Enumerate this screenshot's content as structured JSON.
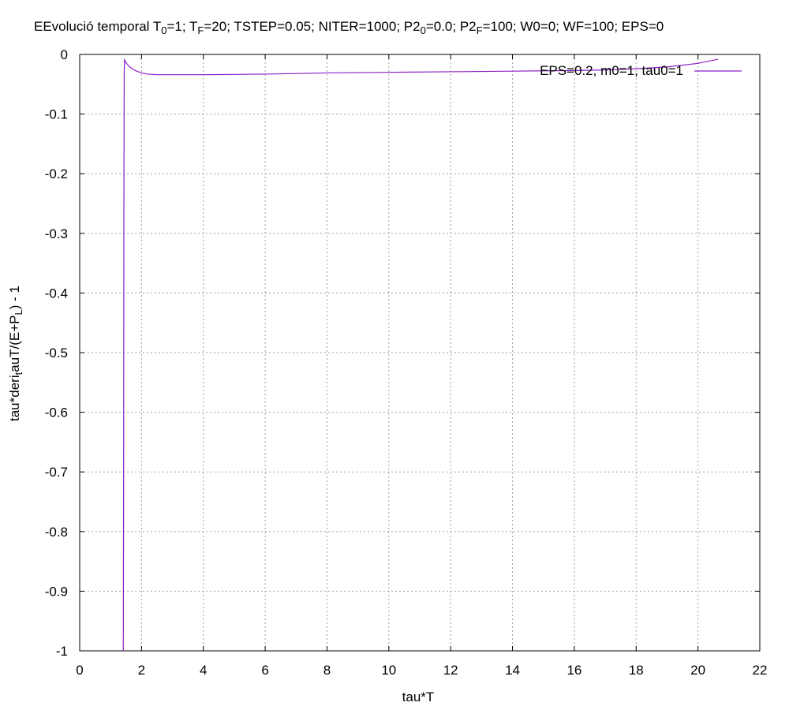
{
  "chart_data": {
    "type": "line",
    "title": {
      "parts": [
        {
          "t": "EEvolució temporal T"
        },
        {
          "t": "0",
          "sub": true
        },
        {
          "t": "=1; T"
        },
        {
          "t": "F",
          "sub": true
        },
        {
          "t": "=20; TSTEP=0.05; NITER=1000; P2"
        },
        {
          "t": "0",
          "sub": true
        },
        {
          "t": "=0.0; P2"
        },
        {
          "t": "F",
          "sub": true
        },
        {
          "t": "=100; W0=0; WF=100; EPS=0"
        }
      ]
    },
    "xlabel": "tau*T",
    "ylabel": {
      "parts": [
        {
          "t": "tau*deri"
        },
        {
          "t": "t",
          "sub": true
        },
        {
          "t": "auT/(E+P"
        },
        {
          "t": "L",
          "sub": true
        },
        {
          "t": ")  -  1"
        }
      ]
    },
    "xlim": [
      0,
      22
    ],
    "ylim": [
      -1,
      0
    ],
    "xticks": [
      "0",
      "2",
      "4",
      "6",
      "8",
      "10",
      "12",
      "14",
      "16",
      "18",
      "20",
      "22"
    ],
    "yticks": [
      "0",
      "-0.1",
      "-0.2",
      "-0.3",
      "-0.4",
      "-0.5",
      "-0.6",
      "-0.7",
      "-0.8",
      "-0.9",
      "-1"
    ],
    "grid": true,
    "legend_position": "top-right",
    "color": "#8b1ec4",
    "series": [
      {
        "name": "EPS=0.2, m0=1, tau0=1",
        "x": [
          1.41,
          1.42,
          1.43,
          1.44,
          1.45,
          1.46,
          1.47,
          1.48,
          1.5,
          1.55,
          1.6,
          1.7,
          1.8,
          2.0,
          2.2,
          2.5,
          2.8,
          3.0,
          4.0,
          5.0,
          6.0,
          8.0,
          10.0,
          12.0,
          14.0,
          16.0,
          17.0,
          18.0,
          19.0,
          20.0,
          20.65
        ],
        "y": [
          -1.0,
          -0.75,
          -0.25,
          -0.03,
          -0.009,
          -0.01,
          -0.011,
          -0.012,
          -0.014,
          -0.017,
          -0.02,
          -0.024,
          -0.027,
          -0.031,
          -0.033,
          -0.034,
          -0.034,
          -0.034,
          -0.034,
          -0.0335,
          -0.033,
          -0.031,
          -0.03,
          -0.029,
          -0.028,
          -0.027,
          -0.026,
          -0.024,
          -0.021,
          -0.015,
          -0.008
        ]
      }
    ]
  }
}
